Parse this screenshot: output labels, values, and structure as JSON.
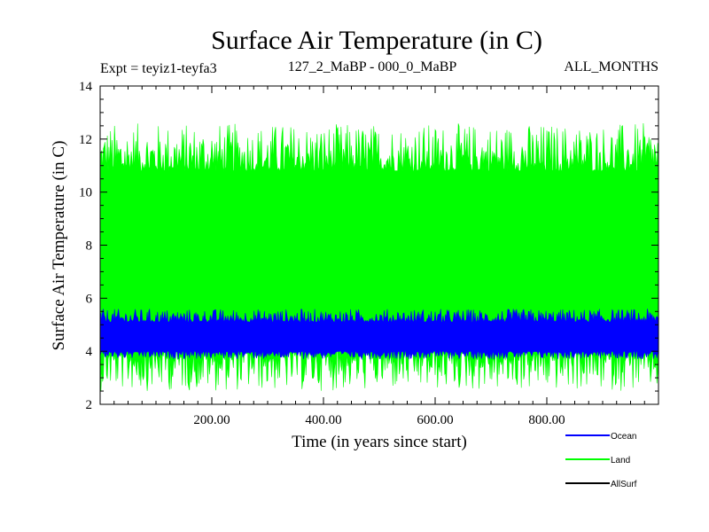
{
  "chart_data": {
    "type": "line",
    "title": "Surface Air Temperature (in C)",
    "subtitle_left": "Expt = teyiz1-teyfa3",
    "subtitle_center": "127_2_MaBP - 000_0_MaBP",
    "subtitle_right": "ALL_MONTHS",
    "xlabel": "Time (in years since start)",
    "ylabel": "Surface Air Temperature (in C)",
    "xlim": [
      0,
      1000
    ],
    "ylim": [
      2,
      14
    ],
    "x_ticks": [
      200,
      400,
      600,
      800
    ],
    "x_tick_labels": [
      "200.00",
      "400.00",
      "600.00",
      "800.00"
    ],
    "y_ticks": [
      2,
      4,
      6,
      8,
      10,
      12,
      14
    ],
    "y_tick_labels": [
      "2",
      "4",
      "6",
      "8",
      "10",
      "12",
      "14"
    ],
    "series": [
      {
        "name": "Ocean",
        "color": "#0000ff",
        "band_low": [
          3.7,
          4.0
        ],
        "band_high": [
          5.1,
          5.6
        ]
      },
      {
        "name": "Land",
        "color": "#00ff00",
        "band_low": [
          2.5,
          4.0
        ],
        "band_high": [
          10.8,
          12.6
        ]
      },
      {
        "name": "AllSurf",
        "color": "#000000"
      }
    ],
    "legend_placement": "bottom-right"
  }
}
